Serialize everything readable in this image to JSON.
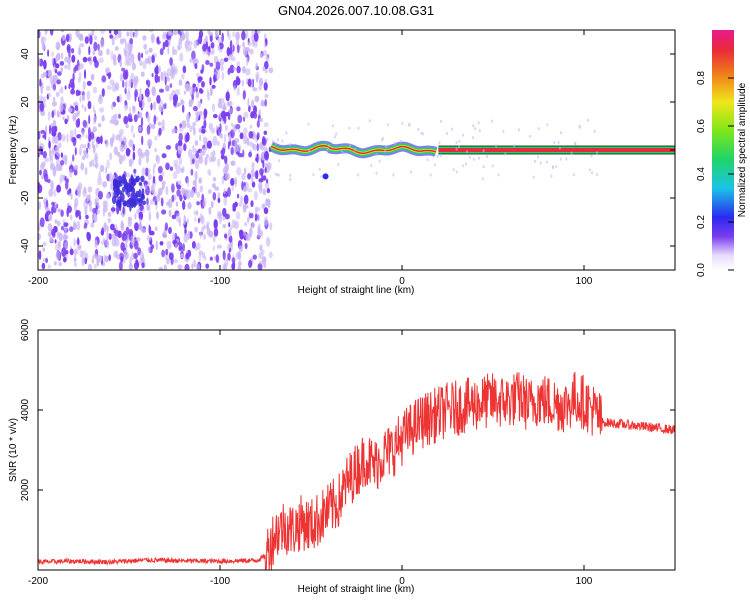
{
  "title": "GN04.2026.007.10.08.G31",
  "chart_data": [
    {
      "type": "heatmap",
      "name": "spectrogram",
      "xlabel": "Height of straight line (km)",
      "ylabel": "Frequency (Hz)",
      "xlim": [
        -200,
        150
      ],
      "ylim": [
        -50,
        50
      ],
      "xticks": [
        -200,
        -100,
        0,
        100
      ],
      "yticks": [
        -40,
        -20,
        0,
        20,
        40
      ],
      "colorbar": {
        "label": "Normalized spectral amplitude",
        "range": [
          0,
          1
        ],
        "ticks": [
          "0.0",
          "0.2",
          "0.4",
          "0.6",
          "0.8"
        ]
      },
      "colors": {
        "noise": "#7a3cf0",
        "noise_light": "#c9b4f5",
        "signal_core": "#e8283c",
        "signal_edge": "#1fd46a"
      },
      "noise_region_x": [
        -200,
        -72
      ],
      "signal_line_x": [
        -72,
        150
      ],
      "signal_line_freq": 0
    },
    {
      "type": "line",
      "name": "snr",
      "xlabel": "Height of straight line (km)",
      "ylabel": "SNR (10 * v/v)",
      "xlim": [
        -200,
        150
      ],
      "ylim": [
        0,
        6000
      ],
      "xticks": [
        -200,
        -100,
        0,
        100
      ],
      "yticks": [
        2000,
        4000,
        6000
      ],
      "color": "#ee3333",
      "series": [
        {
          "x": [
            -200,
            -180,
            -160,
            -140,
            -120,
            -100,
            -80,
            -75,
            -70,
            -65,
            -60,
            -55,
            -50,
            -45,
            -40,
            -35,
            -30,
            -25,
            -20,
            -15,
            -10,
            -5,
            0,
            5,
            10,
            15,
            20,
            25,
            30,
            35,
            40,
            45,
            50,
            55,
            60,
            65,
            70,
            75,
            80,
            85,
            90,
            95,
            100,
            105,
            110,
            120,
            130,
            140,
            150
          ],
          "values": [
            200,
            220,
            200,
            250,
            230,
            220,
            240,
            350,
            900,
            1100,
            1000,
            1200,
            1100,
            1300,
            1500,
            1700,
            2200,
            2500,
            2800,
            2600,
            2900,
            3000,
            3300,
            3500,
            3700,
            3800,
            3900,
            4000,
            4050,
            4100,
            4150,
            4200,
            4250,
            4200,
            4250,
            4300,
            4100,
            4300,
            4200,
            4150,
            4100,
            4300,
            4200,
            4000,
            3700,
            3650,
            3600,
            3550,
            3500
          ]
        }
      ]
    }
  ]
}
